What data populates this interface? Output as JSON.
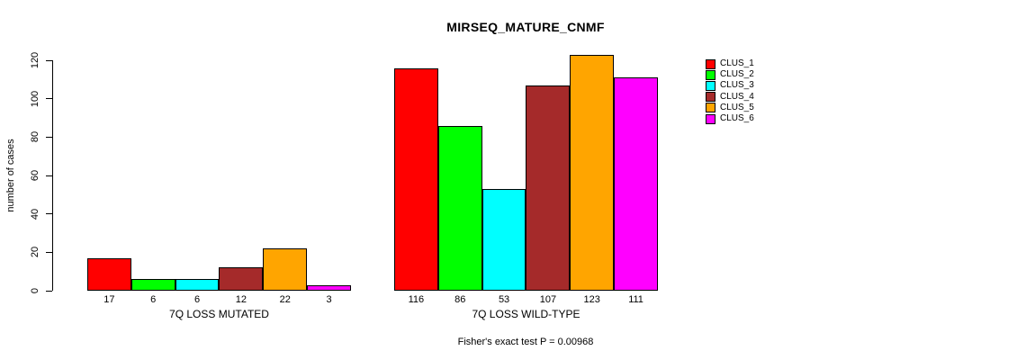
{
  "chart_data": {
    "type": "bar",
    "title": "MIRSEQ_MATURE_CNMF",
    "ylabel": "number of cases",
    "xlabel": "",
    "ylim": [
      0,
      120
    ],
    "yticks": [
      0,
      20,
      40,
      60,
      80,
      100,
      120
    ],
    "grid": false,
    "legend_position": "top-right",
    "categories": [
      "7Q LOSS MUTATED",
      "7Q LOSS WILD-TYPE"
    ],
    "series": [
      {
        "name": "CLUS_1",
        "color": "#FF0000",
        "values": [
          17,
          116
        ]
      },
      {
        "name": "CLUS_2",
        "color": "#00FF00",
        "values": [
          6,
          86
        ]
      },
      {
        "name": "CLUS_3",
        "color": "#00FFFF",
        "values": [
          6,
          53
        ]
      },
      {
        "name": "CLUS_4",
        "color": "#A52A2A",
        "values": [
          12,
          107
        ]
      },
      {
        "name": "CLUS_5",
        "color": "#FFA500",
        "values": [
          22,
          123
        ]
      },
      {
        "name": "CLUS_6",
        "color": "#FF00FF",
        "values": [
          3,
          111
        ]
      }
    ],
    "bar_value_labels": [
      [
        17,
        6,
        6,
        12,
        22,
        3
      ],
      [
        116,
        86,
        53,
        107,
        123,
        111
      ]
    ],
    "annotation": "Fisher's exact test P = 0.00968"
  }
}
